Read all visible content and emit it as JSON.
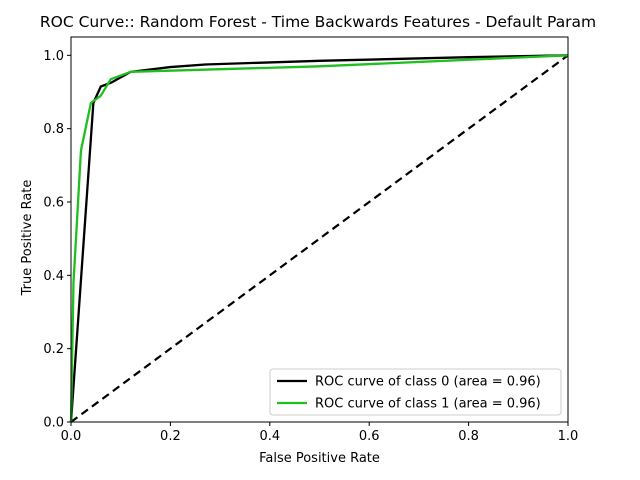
{
  "chart_data": {
    "type": "line",
    "title": "ROC Curve:: Random Forest - Time Backwards Features - Default Param",
    "xlabel": "False Positive Rate",
    "ylabel": "True Positive Rate",
    "xlim": [
      0.0,
      1.0
    ],
    "ylim": [
      0.0,
      1.05
    ],
    "xticks": [
      "0.0",
      "0.2",
      "0.4",
      "0.6",
      "0.8",
      "1.0"
    ],
    "yticks": [
      "0.0",
      "0.2",
      "0.4",
      "0.6",
      "0.8",
      "1.0"
    ],
    "grid": false,
    "legend_position": "lower-right",
    "series": [
      {
        "name": "ROC curve of class 0 (area = 0.96)",
        "color": "#000000",
        "style": "solid",
        "x": [
          0.0,
          0.045,
          0.06,
          0.08,
          0.12,
          0.2,
          0.27,
          0.5,
          0.8,
          1.0
        ],
        "y": [
          0.0,
          0.87,
          0.915,
          0.925,
          0.955,
          0.968,
          0.975,
          0.985,
          0.995,
          1.0
        ]
      },
      {
        "name": "ROC curve of class 1 (area = 0.96)",
        "color": "#1fbf1f",
        "style": "solid",
        "x": [
          0.0,
          0.005,
          0.02,
          0.04,
          0.06,
          0.08,
          0.12,
          0.5,
          1.0
        ],
        "y": [
          0.0,
          0.38,
          0.74,
          0.87,
          0.89,
          0.935,
          0.955,
          0.97,
          1.0
        ]
      }
    ],
    "reference_line": {
      "color": "#000000",
      "style": "dashed",
      "x": [
        0.0,
        1.0
      ],
      "y": [
        0.0,
        1.0
      ]
    }
  }
}
